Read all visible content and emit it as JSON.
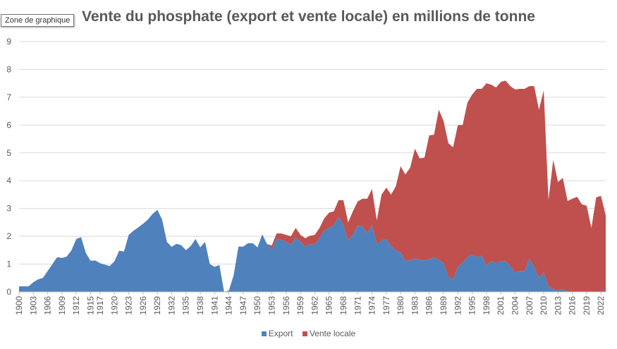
{
  "tooltip": "Zone de graphique",
  "chart_data": {
    "type": "area",
    "stacked": true,
    "title": "Vente du phosphate (export et vente locale) en millions de tonne",
    "ylim": [
      0,
      9
    ],
    "yticks": [
      0,
      1,
      2,
      3,
      4,
      5,
      6,
      7,
      8,
      9
    ],
    "x_tick_labels": [
      "1900",
      "1903",
      "1906",
      "1909",
      "1912",
      "1915",
      "1917",
      "1920",
      "1923",
      "1926",
      "1929",
      "1932",
      "1935",
      "1938",
      "1941",
      "1944",
      "1947",
      "1950",
      "1953",
      "1956",
      "1959",
      "1962",
      "1965",
      "1968",
      "1971",
      "1974",
      "1977",
      "1980",
      "1983",
      "1986",
      "1989",
      "1992",
      "1995",
      "1998",
      "2001",
      "2004",
      "2007",
      "2010",
      "2013",
      "2016",
      "2019",
      "2022"
    ],
    "grid": true,
    "legend_position": "bottom",
    "colors": {
      "Export": "#4f81bd",
      "Vente locale": "#c0504d"
    },
    "x": [
      1900,
      1901,
      1902,
      1903,
      1904,
      1905,
      1906,
      1907,
      1908,
      1909,
      1910,
      1911,
      1912,
      1913,
      1914,
      1915,
      1916,
      1917,
      1918,
      1919,
      1920,
      1921,
      1922,
      1923,
      1924,
      1925,
      1926,
      1927,
      1928,
      1929,
      1930,
      1931,
      1932,
      1933,
      1934,
      1935,
      1936,
      1937,
      1938,
      1939,
      1940,
      1941,
      1942,
      1943,
      1944,
      1945,
      1946,
      1947,
      1948,
      1949,
      1950,
      1951,
      1952,
      1953,
      1954,
      1955,
      1956,
      1957,
      1958,
      1959,
      1960,
      1961,
      1962,
      1963,
      1964,
      1965,
      1966,
      1967,
      1968,
      1969,
      1970,
      1971,
      1972,
      1973,
      1974,
      1975,
      1976,
      1977,
      1978,
      1979,
      1980,
      1981,
      1982,
      1983,
      1984,
      1985,
      1986,
      1987,
      1988,
      1989,
      1990,
      1991,
      1992,
      1993,
      1994,
      1995,
      1996,
      1997,
      1998,
      1999,
      2000,
      2001,
      2002,
      2003,
      2004,
      2005,
      2006,
      2007,
      2008,
      2009,
      2010,
      2011,
      2012,
      2013,
      2014,
      2015,
      2016,
      2017,
      2018,
      2019,
      2020,
      2021,
      2022,
      2023
    ],
    "series": [
      {
        "name": "Export",
        "values": [
          0.2,
          0.2,
          0.2,
          0.35,
          0.45,
          0.5,
          0.75,
          1.0,
          1.25,
          1.22,
          1.27,
          1.5,
          1.9,
          1.97,
          1.4,
          1.12,
          1.13,
          1.03,
          0.98,
          0.93,
          1.1,
          1.48,
          1.45,
          2.05,
          2.2,
          2.32,
          2.45,
          2.6,
          2.8,
          2.95,
          2.6,
          1.8,
          1.62,
          1.73,
          1.68,
          1.5,
          1.65,
          1.9,
          1.6,
          1.8,
          1.0,
          0.9,
          0.97,
          0.0,
          0.05,
          0.6,
          1.63,
          1.63,
          1.75,
          1.75,
          1.6,
          2.07,
          1.72,
          1.52,
          1.9,
          1.87,
          1.8,
          1.7,
          1.95,
          1.8,
          1.63,
          1.72,
          1.7,
          1.95,
          2.2,
          2.3,
          2.4,
          2.7,
          2.4,
          1.85,
          2.05,
          2.4,
          2.35,
          2.1,
          2.4,
          1.72,
          1.85,
          1.9,
          1.65,
          1.5,
          1.42,
          1.12,
          1.12,
          1.2,
          1.15,
          1.13,
          1.18,
          1.25,
          1.15,
          1.05,
          0.55,
          0.45,
          0.9,
          1.05,
          1.25,
          1.35,
          1.25,
          1.3,
          0.95,
          1.1,
          1.05,
          1.1,
          1.1,
          0.92,
          0.7,
          0.75,
          0.75,
          1.2,
          0.9,
          0.5,
          0.7,
          0.2,
          0.1,
          0.05,
          0.1,
          0.02,
          0.0,
          0.0,
          0.0,
          0.0,
          0.0,
          0.0,
          0.0,
          0.0
        ]
      },
      {
        "name": "Vente locale",
        "values": [
          0,
          0,
          0,
          0,
          0,
          0,
          0,
          0,
          0,
          0,
          0,
          0,
          0,
          0,
          0,
          0,
          0,
          0,
          0,
          0,
          0,
          0,
          0,
          0,
          0,
          0,
          0,
          0,
          0,
          0,
          0,
          0,
          0,
          0,
          0,
          0,
          0,
          0,
          0,
          0,
          0,
          0,
          0,
          0,
          0,
          0,
          0,
          0,
          0,
          0,
          0,
          0,
          0,
          0.15,
          0.2,
          0.23,
          0.25,
          0.3,
          0.35,
          0.25,
          0.3,
          0.3,
          0.35,
          0.35,
          0.45,
          0.55,
          0.5,
          0.6,
          0.9,
          0.65,
          0.85,
          0.85,
          1.0,
          1.25,
          1.3,
          0.85,
          1.65,
          1.85,
          1.85,
          2.3,
          3.1,
          3.1,
          3.35,
          3.95,
          3.65,
          3.7,
          4.45,
          4.4,
          5.4,
          5.1,
          4.8,
          4.75,
          5.1,
          4.95,
          5.55,
          5.75,
          6.05,
          6.0,
          6.55,
          6.35,
          6.3,
          6.45,
          6.5,
          6.48,
          6.58,
          6.55,
          6.55,
          6.2,
          6.5,
          6.05,
          6.55,
          3.1,
          4.65,
          3.9,
          4.0,
          3.25,
          3.35,
          3.42,
          3.15,
          3.1,
          2.3,
          3.4,
          3.45,
          2.75
        ]
      }
    ]
  }
}
